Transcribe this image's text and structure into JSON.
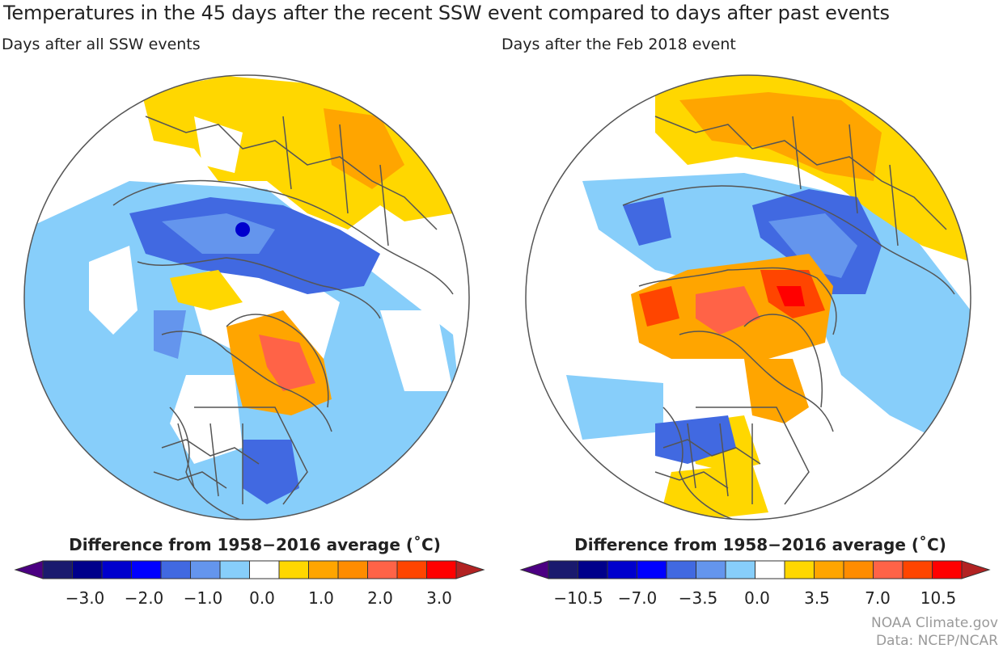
{
  "title": "Temperatures in the 45 days after the recent SSW event compared to days after past events",
  "panels": [
    {
      "subtitle": "Days after all SSW events",
      "legend_title": "Difference from 1958−2016 average (˚C)",
      "tick_labels": [
        "−3.0",
        "−2.0",
        "−1.0",
        "0.0",
        "1.0",
        "2.0",
        "3.0"
      ]
    },
    {
      "subtitle": "Days after the Feb 2018 event",
      "legend_title": "Difference from 1958−2016 average (˚C)",
      "tick_labels": [
        "−10.5",
        "−7.0",
        "−3.5",
        "0.0",
        "3.5",
        "7.0",
        "10.5"
      ]
    }
  ],
  "colorscale": {
    "low_arrow": "#4b0082",
    "high_arrow": "#b22222",
    "bins": [
      "#1a1a6e",
      "#00008b",
      "#0000cd",
      "#0000ff",
      "#4169e1",
      "#6495ed",
      "#87cefa",
      "#ffffff",
      "#ffd700",
      "#ffa500",
      "#ff8c00",
      "#ff6347",
      "#ff4500",
      "#ff0000"
    ]
  },
  "credits": {
    "line1": "NOAA Climate.gov",
    "line2": "Data: NCEP/NCAR"
  }
}
